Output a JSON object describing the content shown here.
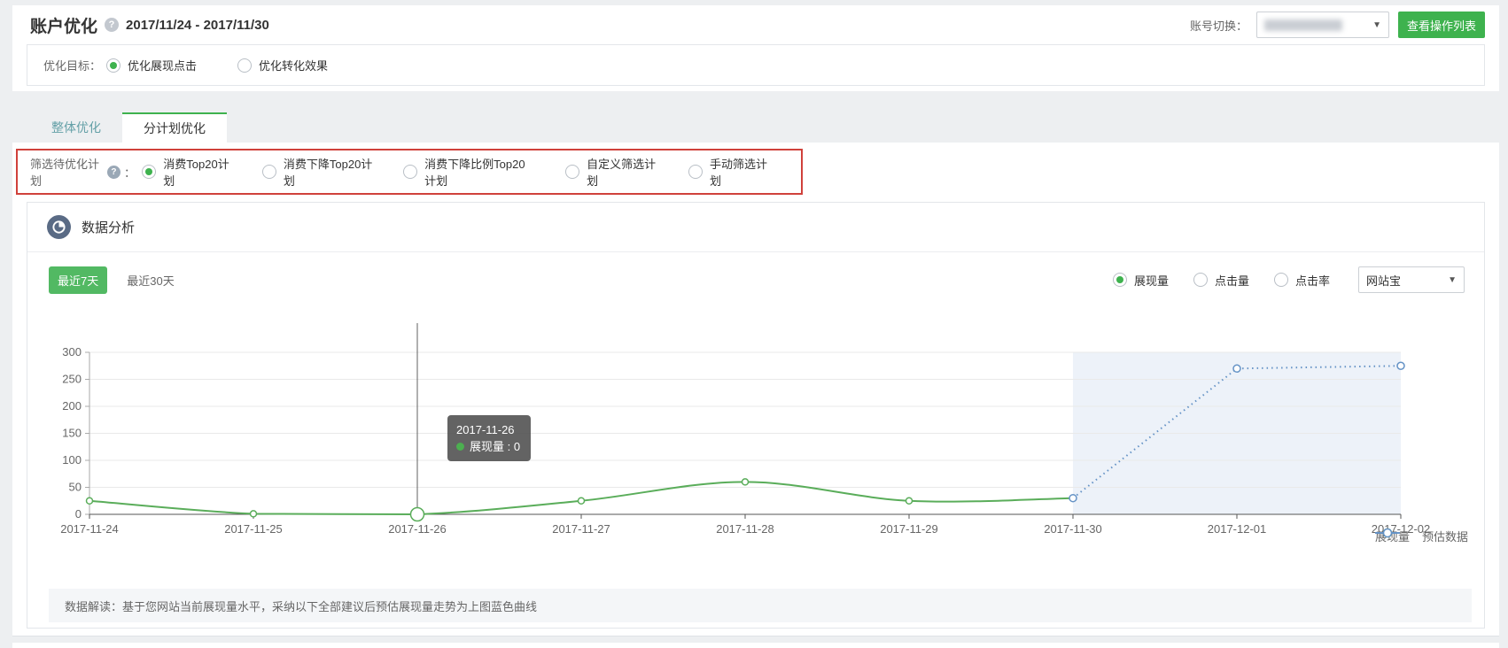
{
  "header": {
    "title": "账户优化",
    "date_range": "2017/11/24 - 2017/11/30",
    "account_switch_label": "账号切换：",
    "account_value": "",
    "view_ops_button": "查看操作列表",
    "help_icon": "question-icon"
  },
  "goal": {
    "label": "优化目标：",
    "options": [
      {
        "label": "优化展现点击",
        "selected": true
      },
      {
        "label": "优化转化效果",
        "selected": false
      }
    ]
  },
  "tabs": [
    {
      "label": "整体优化",
      "active": false
    },
    {
      "label": "分计划优化",
      "active": true
    }
  ],
  "filter": {
    "label": "筛选待优化计划",
    "colon": "：",
    "options": [
      {
        "label": "消费Top20计划",
        "selected": true
      },
      {
        "label": "消费下降Top20计划",
        "selected": false
      },
      {
        "label": "消费下降比例Top20计划",
        "selected": false
      },
      {
        "label": "自定义筛选计划",
        "selected": false
      },
      {
        "label": "手动筛选计划",
        "selected": false
      }
    ]
  },
  "analysis": {
    "title": "数据分析",
    "range_buttons": [
      {
        "label": "最近7天",
        "selected": true
      },
      {
        "label": "最近30天",
        "selected": false
      }
    ],
    "metric_options": [
      {
        "label": "展现量",
        "selected": true
      },
      {
        "label": "点击量",
        "selected": false
      },
      {
        "label": "点击率",
        "selected": false
      }
    ],
    "product_select": "网站宝",
    "note": "数据解读：基于您网站当前展现量水平，采纳以下全部建议后预估展现量走势为上图蓝色曲线"
  },
  "chart_data": {
    "type": "line",
    "x": [
      "2017-11-24",
      "2017-11-25",
      "2017-11-26",
      "2017-11-27",
      "2017-11-28",
      "2017-11-29",
      "2017-11-30",
      "2017-12-01",
      "2017-12-02"
    ],
    "series": [
      {
        "name": "展现量",
        "color": "#5aad5a",
        "style": "solid",
        "values": [
          25,
          1,
          0,
          25,
          60,
          25,
          30,
          null,
          null
        ],
        "marker_indices": [
          0,
          1,
          2,
          3,
          4,
          5
        ],
        "emphasis_index": 2
      },
      {
        "name": "预估数据",
        "color": "#6593c6",
        "style": "dotted",
        "values": [
          null,
          null,
          null,
          null,
          null,
          null,
          30,
          270,
          275
        ],
        "marker_indices": [
          6,
          7,
          8
        ]
      }
    ],
    "ylim": [
      0,
      300
    ],
    "ytick_step": 50,
    "grid": true,
    "legend_position": "bottom-right",
    "forecast_region": {
      "from": "2017-11-30",
      "to": "2017-12-02",
      "color": "#edf2f9"
    },
    "crosshair_x": "2017-11-26",
    "tooltip": {
      "title": "2017-11-26",
      "text": "展现量 : 0"
    }
  },
  "colors": {
    "accent_green": "#3eb24e",
    "series_green": "#5aad5a",
    "series_blue": "#6593c6",
    "forecast_bg": "#edf2f9",
    "highlight_border": "#d0413b"
  }
}
